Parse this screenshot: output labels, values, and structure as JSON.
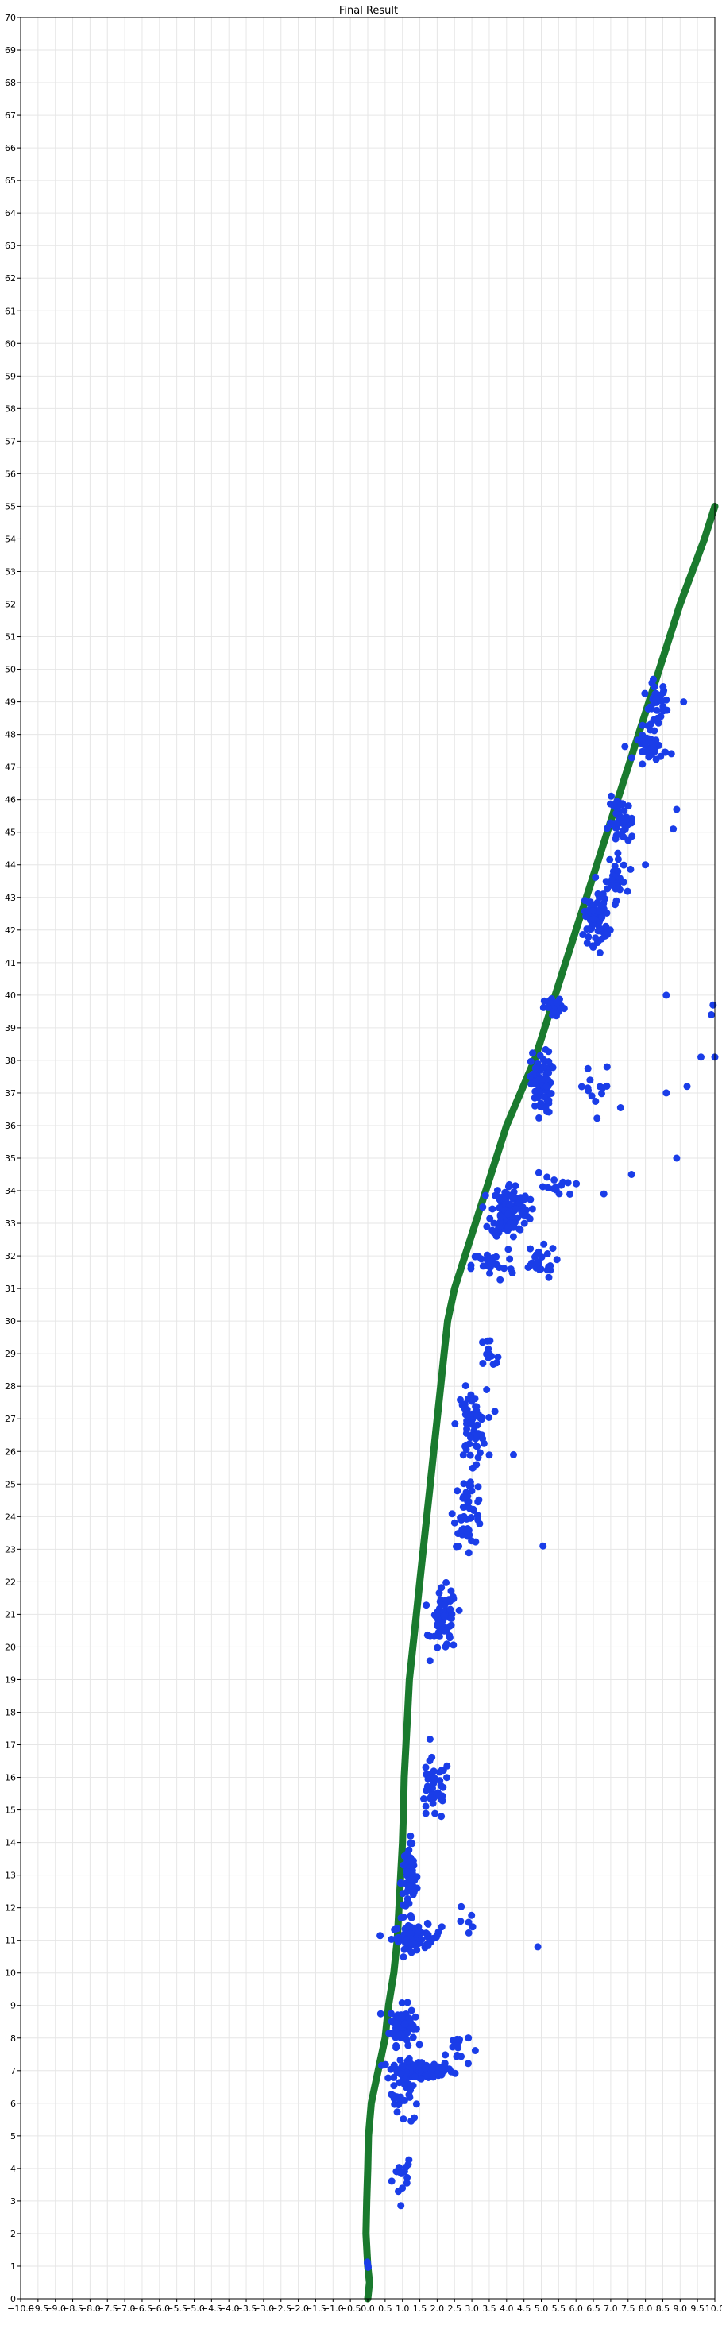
{
  "chart_data": {
    "type": "scatter",
    "title": "Final Result",
    "xlabel": "",
    "ylabel": "",
    "xlim": [
      -10,
      10
    ],
    "ylim": [
      0,
      70
    ],
    "x_ticks": [
      "−10.0",
      "−9.5",
      "−9.0",
      "−8.5",
      "−8.0",
      "−7.5",
      "−7.0",
      "−6.5",
      "−6.0",
      "−5.5",
      "−5.0",
      "−4.5",
      "−4.0",
      "−3.5",
      "−3.0",
      "−2.5",
      "−2.0",
      "−1.5",
      "−1.0",
      "−0.5",
      "0.0",
      "0.5",
      "1.0",
      "1.5",
      "2.0",
      "2.5",
      "3.0",
      "3.5",
      "4.0",
      "4.5",
      "5.0",
      "5.5",
      "6.0",
      "6.5",
      "7.0",
      "7.5",
      "8.0",
      "8.5",
      "9.0",
      "9.5",
      "10.0"
    ],
    "y_ticks": [
      "0",
      "1",
      "2",
      "3",
      "4",
      "5",
      "6",
      "7",
      "8",
      "9",
      "10",
      "11",
      "12",
      "13",
      "14",
      "15",
      "16",
      "17",
      "18",
      "19",
      "20",
      "21",
      "22",
      "23",
      "24",
      "25",
      "26",
      "27",
      "28",
      "29",
      "30",
      "31",
      "32",
      "33",
      "34",
      "35",
      "36",
      "37",
      "38",
      "39",
      "40",
      "41",
      "42",
      "43",
      "44",
      "45",
      "46",
      "47",
      "48",
      "49",
      "50",
      "51",
      "52",
      "53",
      "54",
      "55",
      "56",
      "57",
      "58",
      "59",
      "60",
      "61",
      "62",
      "63",
      "64",
      "65",
      "66",
      "67",
      "68",
      "69",
      "70"
    ],
    "grid": true,
    "colors": {
      "trajectory": "#1a7a2e",
      "points": "#1a3de8",
      "grid": "#e6e6e6"
    },
    "series": [
      {
        "type": "line",
        "points": [
          [
            0.0,
            0.0
          ],
          [
            0.05,
            0.5
          ],
          [
            0.0,
            1.0
          ],
          [
            -0.05,
            2.0
          ],
          [
            -0.03,
            3.0
          ],
          [
            0.0,
            4.0
          ],
          [
            0.02,
            5.0
          ],
          [
            0.1,
            6.0
          ],
          [
            0.3,
            7.0
          ],
          [
            0.5,
            8.0
          ],
          [
            0.6,
            9.0
          ],
          [
            0.75,
            10.0
          ],
          [
            0.85,
            11.0
          ],
          [
            0.9,
            12.0
          ],
          [
            0.95,
            13.0
          ],
          [
            1.0,
            14.0
          ],
          [
            1.03,
            15.0
          ],
          [
            1.05,
            16.0
          ],
          [
            1.1,
            17.0
          ],
          [
            1.15,
            18.0
          ],
          [
            1.2,
            19.0
          ],
          [
            1.3,
            20.0
          ],
          [
            1.4,
            21.0
          ],
          [
            1.5,
            22.0
          ],
          [
            1.6,
            23.0
          ],
          [
            1.7,
            24.0
          ],
          [
            1.8,
            25.0
          ],
          [
            1.9,
            26.0
          ],
          [
            2.0,
            27.0
          ],
          [
            2.1,
            28.0
          ],
          [
            2.2,
            29.0
          ],
          [
            2.3,
            30.0
          ],
          [
            2.5,
            31.0
          ],
          [
            2.8,
            32.0
          ],
          [
            3.1,
            33.0
          ],
          [
            3.4,
            34.0
          ],
          [
            3.7,
            35.0
          ],
          [
            4.0,
            36.0
          ],
          [
            4.4,
            37.0
          ],
          [
            4.8,
            38.0
          ],
          [
            5.1,
            39.0
          ],
          [
            5.4,
            40.0
          ],
          [
            5.7,
            41.0
          ],
          [
            6.0,
            42.0
          ],
          [
            6.3,
            43.0
          ],
          [
            6.6,
            44.0
          ],
          [
            6.9,
            45.0
          ],
          [
            7.2,
            46.0
          ],
          [
            7.5,
            47.0
          ],
          [
            7.8,
            48.0
          ],
          [
            8.1,
            49.0
          ],
          [
            8.4,
            50.0
          ],
          [
            8.7,
            51.0
          ],
          [
            9.0,
            52.0
          ],
          [
            9.35,
            53.0
          ],
          [
            9.7,
            54.0
          ],
          [
            10.0,
            55.0
          ]
        ]
      },
      {
        "type": "scatter",
        "clusters": [
          {
            "cx": 0.0,
            "cy": 1.0,
            "sx": 0.05,
            "sy": 0.15,
            "n": 4
          },
          {
            "cx": 1.0,
            "cy": 3.8,
            "sx": 0.25,
            "sy": 0.6,
            "n": 15
          },
          {
            "cx": 1.1,
            "cy": 6.3,
            "sx": 0.35,
            "sy": 0.7,
            "n": 30
          },
          {
            "cx": 1.5,
            "cy": 7.0,
            "sx": 0.8,
            "sy": 0.25,
            "n": 90
          },
          {
            "cx": 1.0,
            "cy": 8.4,
            "sx": 0.3,
            "sy": 0.5,
            "n": 80
          },
          {
            "cx": 2.6,
            "cy": 7.7,
            "sx": 0.3,
            "sy": 0.5,
            "n": 14
          },
          {
            "cx": 1.4,
            "cy": 11.1,
            "sx": 0.6,
            "sy": 0.3,
            "n": 70
          },
          {
            "cx": 1.2,
            "cy": 12.8,
            "sx": 0.2,
            "sy": 1.0,
            "n": 60
          },
          {
            "cx": 1.9,
            "cy": 15.6,
            "sx": 0.4,
            "sy": 0.8,
            "n": 40
          },
          {
            "cx": 2.9,
            "cy": 11.5,
            "sx": 0.25,
            "sy": 0.6,
            "n": 6
          },
          {
            "cx": 2.2,
            "cy": 20.8,
            "sx": 0.3,
            "sy": 0.8,
            "n": 60
          },
          {
            "cx": 2.9,
            "cy": 24.2,
            "sx": 0.35,
            "sy": 0.9,
            "n": 50
          },
          {
            "cx": 3.0,
            "cy": 26.8,
            "sx": 0.35,
            "sy": 0.9,
            "n": 60
          },
          {
            "cx": 3.4,
            "cy": 28.8,
            "sx": 0.4,
            "sy": 0.6,
            "n": 12
          },
          {
            "cx": 3.6,
            "cy": 31.7,
            "sx": 0.5,
            "sy": 0.4,
            "n": 30
          },
          {
            "cx": 4.1,
            "cy": 33.4,
            "sx": 0.45,
            "sy": 0.7,
            "n": 120
          },
          {
            "cx": 4.9,
            "cy": 31.8,
            "sx": 0.45,
            "sy": 0.4,
            "n": 25
          },
          {
            "cx": 5.3,
            "cy": 34.1,
            "sx": 0.5,
            "sy": 0.5,
            "n": 14
          },
          {
            "cx": 5.0,
            "cy": 37.3,
            "sx": 0.25,
            "sy": 0.8,
            "n": 80
          },
          {
            "cx": 5.4,
            "cy": 39.6,
            "sx": 0.25,
            "sy": 0.25,
            "n": 25
          },
          {
            "cx": 6.6,
            "cy": 37.0,
            "sx": 0.5,
            "sy": 0.8,
            "n": 14
          },
          {
            "cx": 6.6,
            "cy": 42.4,
            "sx": 0.3,
            "sy": 0.7,
            "n": 70
          },
          {
            "cx": 7.1,
            "cy": 43.5,
            "sx": 0.3,
            "sy": 0.5,
            "n": 30
          },
          {
            "cx": 7.3,
            "cy": 45.3,
            "sx": 0.3,
            "sy": 0.6,
            "n": 50
          },
          {
            "cx": 8.2,
            "cy": 47.6,
            "sx": 0.35,
            "sy": 0.3,
            "n": 40
          },
          {
            "cx": 8.3,
            "cy": 48.9,
            "sx": 0.3,
            "sy": 0.6,
            "n": 35
          }
        ],
        "outliers": [
          [
            4.9,
            10.8
          ],
          [
            5.05,
            23.1
          ],
          [
            4.2,
            25.9
          ],
          [
            6.8,
            33.9
          ],
          [
            7.6,
            34.5
          ],
          [
            8.9,
            35.0
          ],
          [
            8.6,
            37.0
          ],
          [
            9.2,
            37.2
          ],
          [
            9.6,
            38.1
          ],
          [
            10.0,
            38.1
          ],
          [
            9.9,
            39.4
          ],
          [
            9.95,
            39.7
          ],
          [
            8.6,
            40.0
          ],
          [
            8.0,
            44.0
          ],
          [
            8.8,
            45.1
          ],
          [
            8.9,
            45.7
          ],
          [
            9.1,
            49.0
          ]
        ]
      }
    ]
  }
}
